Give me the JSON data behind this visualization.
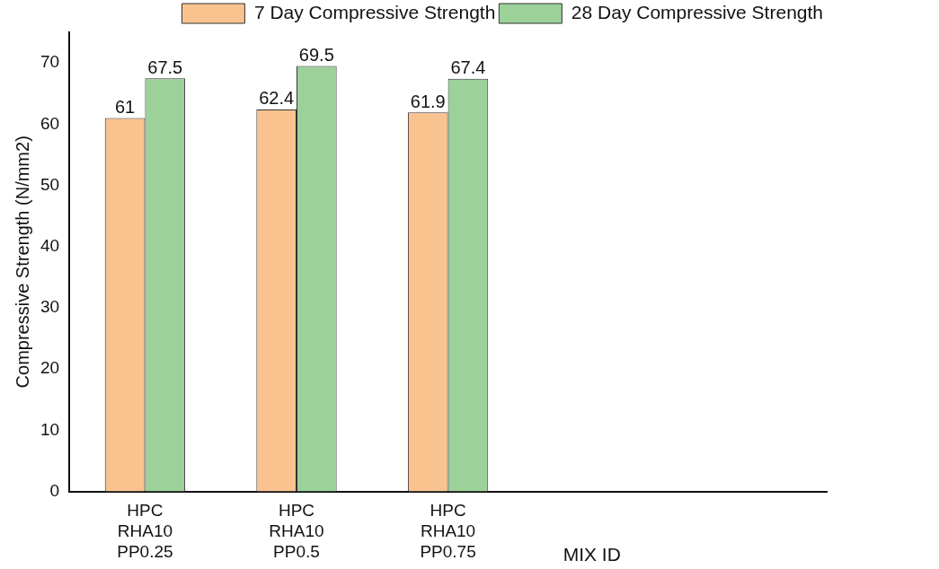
{
  "chart_data": {
    "type": "bar",
    "categories": [
      "HPC\nRHA10\nPP0.25",
      "HPC\nRHA10\nPP0.5",
      "HPC\nRHA10\nPP0.75",
      null,
      null
    ],
    "series": [
      {
        "name": "7 Day Compressive Strength",
        "color": "#f9c38f",
        "values": [
          61,
          62.4,
          61.9,
          null,
          null
        ]
      },
      {
        "name": "28 Day Compressive Strength",
        "color": "#9dd19a",
        "values": [
          67.5,
          69.5,
          67.4,
          null,
          null
        ]
      }
    ],
    "xlabel": "MIX ID",
    "ylabel": "Compressive Strength (N/mm2)",
    "ylim": [
      0,
      75
    ],
    "yticks": [
      0,
      10,
      20,
      30,
      40,
      50,
      60,
      70
    ],
    "data_labels": true,
    "legend": "top right",
    "grid": false
  }
}
